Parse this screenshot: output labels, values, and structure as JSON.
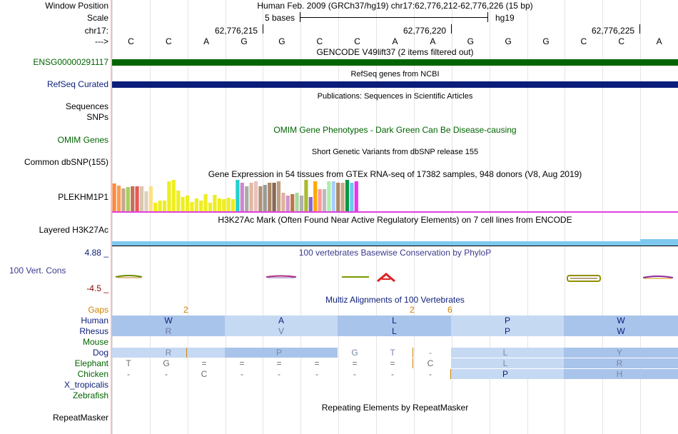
{
  "colors": {
    "gencode": "#006400",
    "refseq": "#0b1d7a",
    "omim_text": "#006400",
    "label_blue": "#0b1d7a",
    "gaps_orange": "#d08000",
    "gtex_line": "#e040e0",
    "h3k27ac": "#7ec8f0",
    "phylop_text": "#3a3a8c",
    "codon_dark": "#a9c4ea",
    "codon_light": "#c6d9f3"
  },
  "header": {
    "window_position_label": "Window Position",
    "window_position_value": "Human Feb. 2009 (GRCh37/hg19)   chr17:62,776,212-62,776,226 (15 bp)",
    "scale_label": "Scale",
    "scale_value": "5 bases",
    "scale_db": "hg19",
    "chrom_label": "chr17:",
    "pos1": "62,776,215",
    "pos2": "62,776,220",
    "pos3": "62,776,225",
    "arrow_label": "--->",
    "bases": [
      "C",
      "C",
      "A",
      "G",
      "G",
      "C",
      "C",
      "A",
      "A",
      "G",
      "G",
      "G",
      "C",
      "C",
      "A"
    ]
  },
  "tracks": {
    "gencode_title": "GENCODE V49lift37 (2 items filtered out)",
    "gencode_label": "ENSG00000291117",
    "refseq_title": "RefSeq genes from NCBI",
    "refseq_label": "RefSeq Curated",
    "pubs_title": "Publications: Sequences in Scientific Articles",
    "sequences_label": "Sequences",
    "snps_label": "SNPs",
    "omim_label": "OMIM Genes",
    "omim_title": "OMIM Gene Phenotypes - Dark Green Can Be Disease-causing",
    "dbsnp_title": "Short Genetic Variants from dbSNP release 155",
    "dbsnp_label": "Common dbSNP(155)",
    "gtex_title": "Gene Expression in 54 tissues from GTEx RNA-seq of 17382 samples, 948 donors (V8, Aug 2019)",
    "gtex_label": "PLEKHM1P1",
    "h3k_title": "H3K27Ac Mark (Often Found Near Active Regulatory Elements) on 7 cell lines from ENCODE",
    "h3k_label": "Layered H3K27Ac",
    "cons_max": "4.88 _",
    "cons_title": "100 vertebrates Basewise Conservation by PhyloP",
    "cons_label": "100 Vert. Cons",
    "cons_min": "-4.5 _",
    "multiz_title": "Multiz Alignments of 100 Vertebrates",
    "gaps_label": "Gaps",
    "gap_numbers": [
      "2",
      "2",
      "6"
    ],
    "species": [
      "Human",
      "Rhesus",
      "Mouse",
      "Dog",
      "Elephant",
      "Chicken",
      "X_tropicalis",
      "Zebrafish"
    ],
    "human_aa": [
      "W",
      "A",
      "L",
      "P",
      "W"
    ],
    "rhesus_aa": [
      "R",
      "V",
      "L",
      "P",
      "W"
    ],
    "dog_aa": [
      "R",
      "P",
      "G",
      "T",
      "-",
      "L",
      "Y"
    ],
    "elephant_row": [
      "T",
      "G",
      "=",
      "=",
      "=",
      "=",
      "=",
      "=",
      "C",
      "L",
      "R"
    ],
    "chicken_row": [
      "-",
      "-",
      "C",
      "-",
      "-",
      "-",
      "-",
      "-",
      "-",
      "P",
      "H"
    ],
    "repeat_title": "Repeating Elements by RepeatMasker",
    "repeat_label": "RepeatMasker"
  },
  "gtex_bars": [
    {
      "color": "#ff8a3c",
      "value": 0.88
    },
    {
      "color": "#ff9a50",
      "value": 0.82
    },
    {
      "color": "#c6a890",
      "value": 0.72
    },
    {
      "color": "#a5d05b",
      "value": 0.78
    },
    {
      "color": "#c27258",
      "value": 0.8
    },
    {
      "color": "#e85858",
      "value": 0.8
    },
    {
      "color": "#d8c6ae",
      "value": 0.8
    },
    {
      "color": "#dfd1bc",
      "value": 0.64
    },
    {
      "color": "#ffe080",
      "value": 0.8
    },
    {
      "color": "#eeee22",
      "value": 0.28
    },
    {
      "color": "#eeee22",
      "value": 0.33
    },
    {
      "color": "#eeee22",
      "value": 0.35
    },
    {
      "color": "#eeee22",
      "value": 0.95
    },
    {
      "color": "#eeee22",
      "value": 1.0
    },
    {
      "color": "#eeee22",
      "value": 0.65
    },
    {
      "color": "#eeee22",
      "value": 0.45
    },
    {
      "color": "#eeee22",
      "value": 0.5
    },
    {
      "color": "#eeee22",
      "value": 0.3
    },
    {
      "color": "#eeee22",
      "value": 0.4
    },
    {
      "color": "#eeee22",
      "value": 0.33
    },
    {
      "color": "#eeee22",
      "value": 0.55
    },
    {
      "color": "#eeee22",
      "value": 0.28
    },
    {
      "color": "#eeee22",
      "value": 0.52
    },
    {
      "color": "#eeee22",
      "value": 0.4
    },
    {
      "color": "#eeee22",
      "value": 0.38
    },
    {
      "color": "#eeee22",
      "value": 0.43
    },
    {
      "color": "#eeee22",
      "value": 0.38
    },
    {
      "color": "#22d0d0",
      "value": 1.0
    },
    {
      "color": "#cc88cc",
      "value": 0.9
    },
    {
      "color": "#aaaaaa",
      "value": 0.8
    },
    {
      "color": "#e0b8a0",
      "value": 0.9
    },
    {
      "color": "#e8c0c0",
      "value": 0.95
    },
    {
      "color": "#b09070",
      "value": 0.8
    },
    {
      "color": "#9a9a9a",
      "value": 0.85
    },
    {
      "color": "#aa8866",
      "value": 0.9
    },
    {
      "color": "#886655",
      "value": 0.9
    },
    {
      "color": "#c0a080",
      "value": 0.95
    },
    {
      "color": "#e0b0a0",
      "value": 0.6
    },
    {
      "color": "#cc99cc",
      "value": 0.5
    },
    {
      "color": "#bb7744",
      "value": 0.55
    },
    {
      "color": "#a8d8a0",
      "value": 0.6
    },
    {
      "color": "#b0b0b0",
      "value": 0.5
    },
    {
      "color": "#aabb33",
      "value": 1.0
    },
    {
      "color": "#8866cc",
      "value": 0.45
    },
    {
      "color": "#ffaa00",
      "value": 0.95
    },
    {
      "color": "#ff9999",
      "value": 0.7
    },
    {
      "color": "#bbbbbb",
      "value": 0.7
    },
    {
      "color": "#aaeeaa",
      "value": 0.95
    },
    {
      "color": "#aaccff",
      "value": 0.95
    },
    {
      "color": "#aa8866",
      "value": 0.9
    },
    {
      "color": "#ccaa88",
      "value": 0.9
    },
    {
      "color": "#009944",
      "value": 1.0
    },
    {
      "color": "#66ccee",
      "value": 0.9
    },
    {
      "color": "#ee33ee",
      "value": 0.95
    }
  ]
}
